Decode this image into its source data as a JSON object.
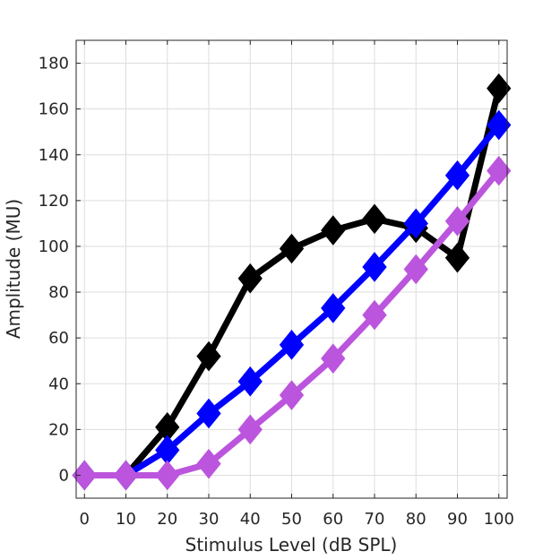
{
  "chart_data": {
    "type": "line",
    "xlabel": "Stimulus Level (dB SPL)",
    "ylabel": "Amplitude (MU)",
    "xlim": [
      -2,
      102
    ],
    "ylim": [
      -10,
      190
    ],
    "xticks": [
      0,
      10,
      20,
      30,
      40,
      50,
      60,
      70,
      80,
      90,
      100
    ],
    "yticks": [
      0,
      20,
      40,
      60,
      80,
      100,
      120,
      140,
      160,
      180
    ],
    "grid": true,
    "x": [
      0,
      10,
      20,
      30,
      40,
      50,
      60,
      70,
      80,
      90,
      100
    ],
    "series": [
      {
        "color": "#000000",
        "values": [
          0,
          0,
          21,
          52,
          86,
          99,
          107,
          112,
          108,
          95,
          169
        ]
      },
      {
        "color": "#0000ff",
        "values": [
          0,
          0,
          11,
          27,
          41,
          57,
          73,
          91,
          110,
          131,
          153
        ]
      },
      {
        "color": "#bb55dd",
        "values": [
          0,
          0,
          0,
          5,
          20,
          35,
          51,
          70,
          90,
          111,
          133
        ]
      }
    ]
  }
}
